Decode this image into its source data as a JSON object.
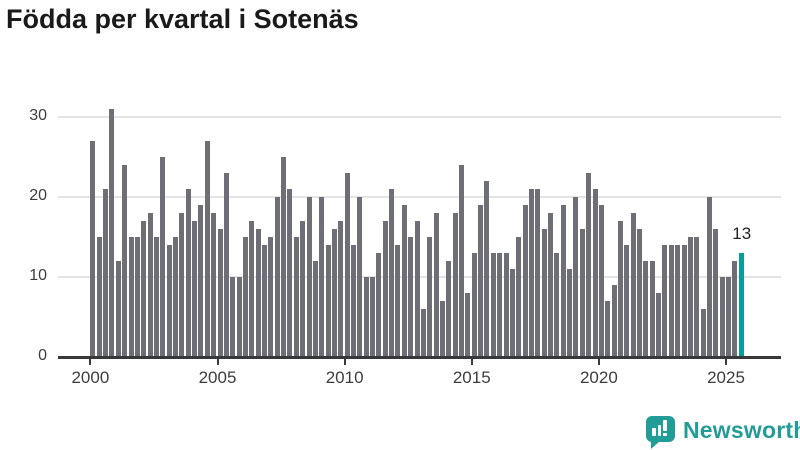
{
  "title": "Födda per kvartal i Sotenäs",
  "chart_data": {
    "type": "bar",
    "title": "Födda per kvartal i Sotenäs",
    "frequency": "quarterly",
    "x_start": "2000-Q1",
    "x_end": "2025-Q3",
    "x_tick_labels": [
      "2000",
      "2005",
      "2010",
      "2015",
      "2020",
      "2025"
    ],
    "x_tick_indices": [
      0,
      20,
      40,
      60,
      80,
      100
    ],
    "y_tick_labels": [
      "0",
      "10",
      "20",
      "30"
    ],
    "y_tick_values": [
      0,
      10,
      20,
      30
    ],
    "ylim": [
      0,
      33
    ],
    "grid": "horizontal",
    "legend": "none",
    "bar_color": "#6e6e77",
    "highlight_color": "#00a09b",
    "highlight_index": 102,
    "last_value_label": "13",
    "series": [
      {
        "name": "Födda",
        "values": [
          27,
          15,
          21,
          31,
          12,
          24,
          15,
          15,
          17,
          18,
          15,
          25,
          14,
          15,
          18,
          21,
          17,
          19,
          27,
          18,
          16,
          23,
          10,
          10,
          15,
          17,
          16,
          14,
          15,
          20,
          25,
          21,
          15,
          17,
          20,
          12,
          20,
          14,
          16,
          17,
          23,
          14,
          20,
          10,
          10,
          13,
          17,
          21,
          14,
          19,
          15,
          17,
          6,
          15,
          18,
          7,
          12,
          18,
          24,
          8,
          13,
          19,
          22,
          13,
          13,
          13,
          11,
          15,
          19,
          21,
          21,
          16,
          18,
          13,
          19,
          11,
          20,
          16,
          23,
          21,
          19,
          7,
          9,
          17,
          14,
          18,
          16,
          12,
          12,
          8,
          14,
          14,
          14,
          14,
          15,
          15,
          6,
          20,
          16,
          10,
          10,
          12,
          13
        ]
      }
    ]
  },
  "watermark": {
    "label": "Newsworthy",
    "icon": "newsworthy-bubble-chart-icon",
    "color": "#219c97"
  }
}
